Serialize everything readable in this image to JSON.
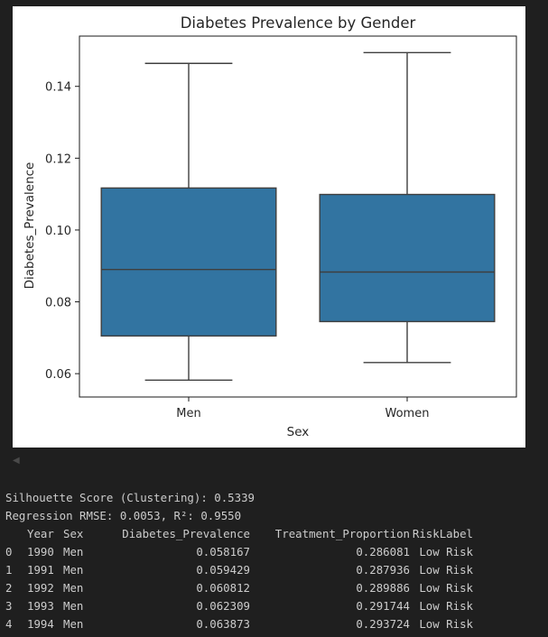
{
  "chart_data": {
    "type": "boxplot",
    "title": "Diabetes Prevalence by Gender",
    "xlabel": "Sex",
    "ylabel": "Diabetes_Prevalence",
    "categories": [
      "Men",
      "Women"
    ],
    "boxes": [
      {
        "category": "Men",
        "whisker_low": 0.0582,
        "q1": 0.0705,
        "median": 0.089,
        "q3": 0.1117,
        "whisker_high": 0.1464
      },
      {
        "category": "Women",
        "whisker_low": 0.0631,
        "q1": 0.0745,
        "median": 0.0883,
        "q3": 0.1099,
        "whisker_high": 0.1494
      }
    ],
    "ylim": [
      0.0535,
      0.154
    ],
    "yticks": [
      0.06,
      0.08,
      0.1,
      0.12,
      0.14
    ],
    "ytick_labels": [
      "0.06",
      "0.08",
      "0.10",
      "0.12",
      "0.14"
    ],
    "grid": false,
    "box_color": "#3274a1",
    "line_color": "#3f3f3f"
  },
  "output": {
    "silhouette_line": "Silhouette Score (Clustering): 0.5339",
    "regression_line": "Regression RMSE: 0.0053, R²: 0.9550",
    "table": {
      "columns": [
        "",
        "Year",
        "Sex",
        "Diabetes_Prevalence",
        "Treatment_Proportion",
        "RiskLabel"
      ],
      "rows": [
        [
          "0",
          "1990",
          "Men",
          "0.058167",
          "0.286081",
          "Low Risk"
        ],
        [
          "1",
          "1991",
          "Men",
          "0.059429",
          "0.287936",
          "Low Risk"
        ],
        [
          "2",
          "1992",
          "Men",
          "0.060812",
          "0.289886",
          "Low Risk"
        ],
        [
          "3",
          "1993",
          "Men",
          "0.062309",
          "0.291744",
          "Low Risk"
        ],
        [
          "4",
          "1994",
          "Men",
          "0.063873",
          "0.293724",
          "Low Risk"
        ]
      ]
    }
  },
  "ui": {
    "collapse_icon": "triangle-left-icon"
  }
}
